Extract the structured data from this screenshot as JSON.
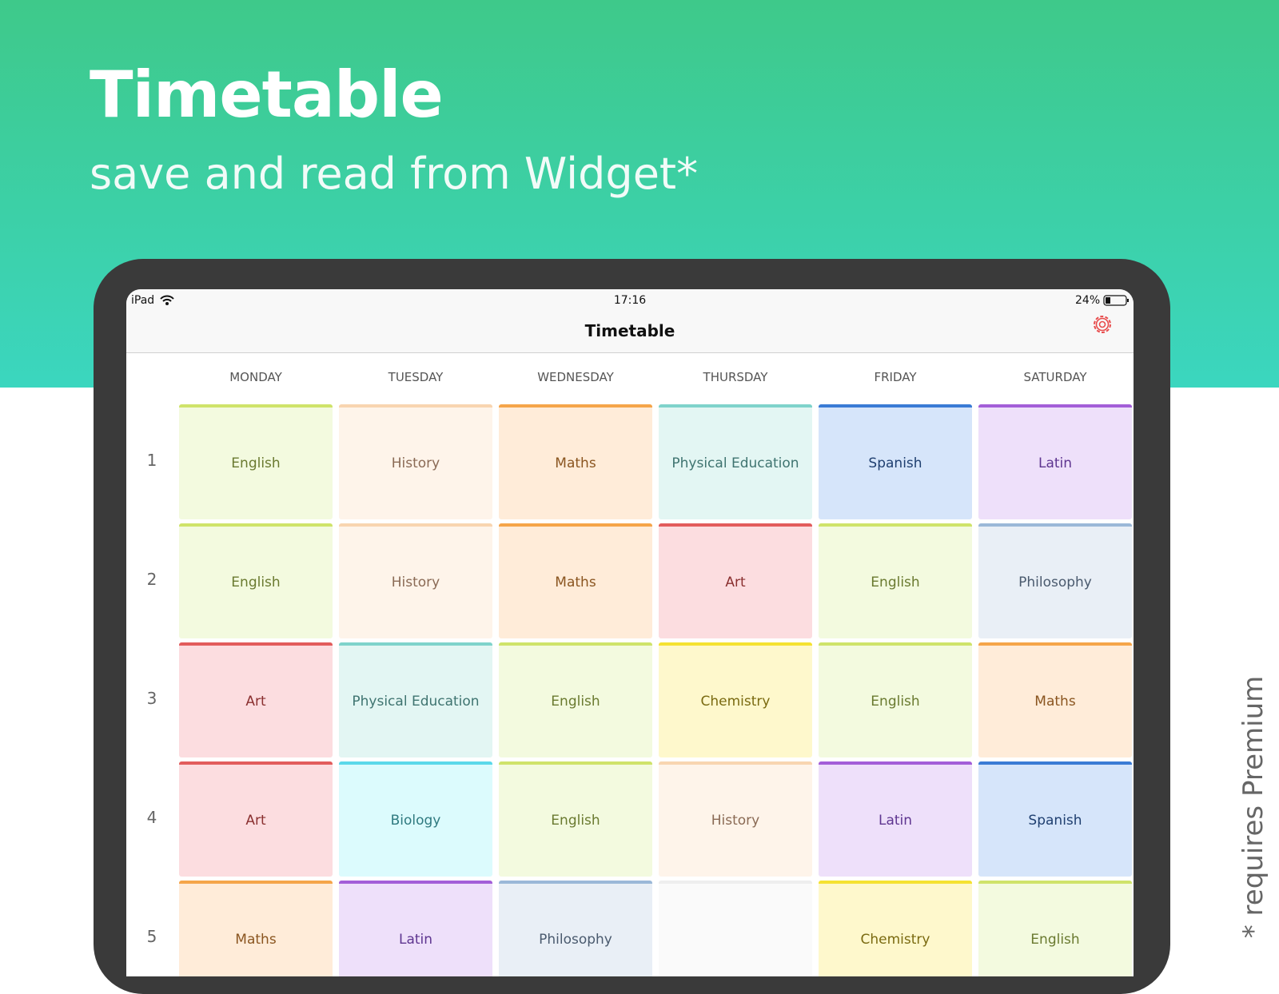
{
  "header": {
    "title": "Timetable",
    "subtitle": "save and read from Widget*"
  },
  "status": {
    "carrier": "iPad",
    "time": "17:16",
    "battery": "24%"
  },
  "nav": {
    "title": "Timetable"
  },
  "days": [
    "MONDAY",
    "TUESDAY",
    "WEDNESDAY",
    "THURSDAY",
    "FRIDAY",
    "SATURDAY"
  ],
  "rows": [
    {
      "period": "1",
      "cells": [
        {
          "text": "English",
          "bar": "#cfe36a",
          "bg": "#f3fadf",
          "fg": "#6a7a30"
        },
        {
          "text": "History",
          "bar": "#f8d5b0",
          "bg": "#fef4ea",
          "fg": "#8a6a55"
        },
        {
          "text": "Maths",
          "bar": "#f5a54a",
          "bg": "#ffecd9",
          "fg": "#8a5520"
        },
        {
          "text": "Physical Education",
          "bar": "#7fd3cb",
          "bg": "#e3f6f3",
          "fg": "#3f7470"
        },
        {
          "text": "Spanish",
          "bar": "#3a7bd5",
          "bg": "#d6e5fa",
          "fg": "#1f3f70"
        },
        {
          "text": "Latin",
          "bar": "#a35ed8",
          "bg": "#eee0fa",
          "fg": "#5e3590"
        }
      ]
    },
    {
      "period": "2",
      "cells": [
        {
          "text": "English",
          "bar": "#cfe36a",
          "bg": "#f3fadf",
          "fg": "#6a7a30"
        },
        {
          "text": "History",
          "bar": "#f8d5b0",
          "bg": "#fef4ea",
          "fg": "#8a6a55"
        },
        {
          "text": "Maths",
          "bar": "#f5a54a",
          "bg": "#ffecd9",
          "fg": "#8a5520"
        },
        {
          "text": "Art",
          "bar": "#e25c5c",
          "bg": "#fcdde0",
          "fg": "#8a3030"
        },
        {
          "text": "English",
          "bar": "#cfe36a",
          "bg": "#f3fadf",
          "fg": "#6a7a30"
        },
        {
          "text": "Philosophy",
          "bar": "#9bb8d8",
          "bg": "#e9eff6",
          "fg": "#4a5a6e"
        }
      ]
    },
    {
      "period": "3",
      "cells": [
        {
          "text": "Art",
          "bar": "#e25c5c",
          "bg": "#fcdde0",
          "fg": "#8a3030"
        },
        {
          "text": "Physical Education",
          "bar": "#7fd3cb",
          "bg": "#e3f6f3",
          "fg": "#3f7470"
        },
        {
          "text": "English",
          "bar": "#cfe36a",
          "bg": "#f3fadf",
          "fg": "#6a7a30"
        },
        {
          "text": "Chemistry",
          "bar": "#f5e231",
          "bg": "#fef8cc",
          "fg": "#7a6a10"
        },
        {
          "text": "English",
          "bar": "#cfe36a",
          "bg": "#f3fadf",
          "fg": "#6a7a30"
        },
        {
          "text": "Maths",
          "bar": "#f5a54a",
          "bg": "#ffecd9",
          "fg": "#8a5520"
        }
      ]
    },
    {
      "period": "4",
      "cells": [
        {
          "text": "Art",
          "bar": "#e25c5c",
          "bg": "#fcdde0",
          "fg": "#8a3030"
        },
        {
          "text": "Biology",
          "bar": "#5ad8ea",
          "bg": "#dcfbfd",
          "fg": "#2f7a80"
        },
        {
          "text": "English",
          "bar": "#cfe36a",
          "bg": "#f3fadf",
          "fg": "#6a7a30"
        },
        {
          "text": "History",
          "bar": "#f8d5b0",
          "bg": "#fef4ea",
          "fg": "#8a6a55"
        },
        {
          "text": "Latin",
          "bar": "#a35ed8",
          "bg": "#eee0fa",
          "fg": "#5e3590"
        },
        {
          "text": "Spanish",
          "bar": "#3a7bd5",
          "bg": "#d6e5fa",
          "fg": "#1f3f70"
        }
      ]
    },
    {
      "period": "5",
      "cells": [
        {
          "text": "Maths",
          "bar": "#f5a54a",
          "bg": "#ffecd9",
          "fg": "#8a5520"
        },
        {
          "text": "Latin",
          "bar": "#a35ed8",
          "bg": "#eee0fa",
          "fg": "#5e3590"
        },
        {
          "text": "Philosophy",
          "bar": "#9bb8d8",
          "bg": "#e9eff6",
          "fg": "#4a5a6e"
        },
        {
          "bar": "#eeeeee",
          "bg": "#fafafa"
        },
        {
          "text": "Chemistry",
          "bar": "#f5e231",
          "bg": "#fef8cc",
          "fg": "#7a6a10"
        },
        {
          "text": "English",
          "bar": "#cfe36a",
          "bg": "#f3fadf",
          "fg": "#6a7a30"
        }
      ]
    }
  ],
  "footnote": "* requires Premium"
}
